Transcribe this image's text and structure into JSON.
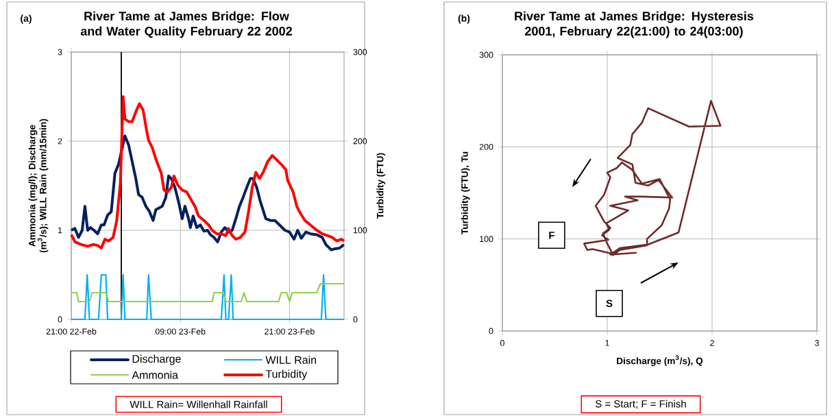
{
  "chart_data": [
    {
      "type": "line",
      "title": "River Tame at James Bridge: Flow and Water Quality February 22 2002",
      "ylabel": "Ammonia (mg/l); Discharge (m$^{3}$/s); WILL Rain (mm/15min)",
      "y2label": "Turbidity (FTU)",
      "xlim": [
        "2002-02-22T21:00",
        "2002-02-24T03:00"
      ],
      "xticks": [
        {
          "value": "2002-02-22T21:00",
          "label": "21:00 22-Feb"
        },
        {
          "value": "2002-02-23T09:00",
          "label": "09:00 23-Feb"
        },
        {
          "value": "2002-02-23T21:00",
          "label": "21:00 23-Feb"
        }
      ],
      "ylim": [
        0,
        3
      ],
      "yticks": [
        0,
        1,
        2,
        3
      ],
      "y2lim": [
        0,
        300
      ],
      "y2ticks": [
        0,
        100,
        200,
        300
      ],
      "grid": true,
      "legend": "bottom",
      "ref_lines": [
        {
          "axis": "x",
          "value": "2002-02-23T02:30",
          "color": "#000000"
        }
      ],
      "annotations": [
        "(a)",
        "WILL Rain= Willenhall Rainfall"
      ],
      "series": [
        {
          "name": "Discharge",
          "color": "#002060",
          "x": [
            "2002-02-22T21:00",
            "2002-02-22T21:24",
            "2002-02-22T21:48",
            "2002-02-22T22:12",
            "2002-02-22T22:30",
            "2002-02-22T22:48",
            "2002-02-22T23:06",
            "2002-02-22T23:30",
            "2002-02-22T23:54",
            "2002-02-23T00:18",
            "2002-02-23T00:36",
            "2002-02-23T01:00",
            "2002-02-23T01:24",
            "2002-02-23T01:48",
            "2002-02-23T02:12",
            "2002-02-23T02:30",
            "2002-02-23T02:54",
            "2002-02-23T03:18",
            "2002-02-23T03:42",
            "2002-02-23T04:06",
            "2002-02-23T04:24",
            "2002-02-23T04:48",
            "2002-02-23T05:12",
            "2002-02-23T05:36",
            "2002-02-23T06:00",
            "2002-02-23T06:18",
            "2002-02-23T07:00",
            "2002-02-23T07:24",
            "2002-02-23T07:42",
            "2002-02-23T08:00",
            "2002-02-23T08:24",
            "2002-02-23T08:48",
            "2002-02-23T09:12",
            "2002-02-23T09:30",
            "2002-02-23T09:54",
            "2002-02-23T10:06",
            "2002-02-23T10:24",
            "2002-02-23T10:48",
            "2002-02-23T11:12",
            "2002-02-23T11:36",
            "2002-02-23T12:00",
            "2002-02-23T12:18",
            "2002-02-23T12:42",
            "2002-02-23T13:06",
            "2002-02-23T13:30",
            "2002-02-23T13:54",
            "2002-02-23T14:18",
            "2002-02-23T14:42",
            "2002-02-23T15:06",
            "2002-02-23T15:30",
            "2002-02-23T15:54",
            "2002-02-23T16:18",
            "2002-02-23T16:42",
            "2002-02-23T17:00",
            "2002-02-23T17:24",
            "2002-02-23T17:48",
            "2002-02-23T18:24",
            "2002-02-23T18:54",
            "2002-02-23T19:24",
            "2002-02-23T19:54",
            "2002-02-23T20:30",
            "2002-02-23T21:00",
            "2002-02-23T21:30",
            "2002-02-23T21:54",
            "2002-02-23T22:18",
            "2002-02-23T22:48",
            "2002-02-23T23:18",
            "2002-02-24T00:00",
            "2002-02-24T00:36",
            "2002-02-24T01:00",
            "2002-02-24T01:36",
            "2002-02-24T01:54",
            "2002-02-24T02:30",
            "2002-02-24T03:00"
          ],
          "values": [
            1.0,
            1.02,
            0.92,
            1.0,
            1.27,
            1.0,
            1.03,
            1.0,
            0.96,
            1.06,
            1.06,
            1.17,
            1.21,
            1.64,
            1.74,
            1.88,
            2.06,
            1.96,
            1.77,
            1.58,
            1.4,
            1.37,
            1.27,
            1.21,
            1.11,
            1.23,
            1.27,
            1.37,
            1.61,
            1.58,
            1.48,
            1.32,
            1.13,
            1.27,
            1.13,
            1.03,
            1.16,
            1.03,
            1.06,
            0.99,
            1.0,
            0.95,
            0.92,
            0.87,
            0.98,
            1.03,
            0.98,
            1.0,
            1.13,
            1.27,
            1.37,
            1.48,
            1.58,
            1.58,
            1.48,
            1.32,
            1.13,
            1.11,
            1.11,
            1.06,
            1.0,
            0.98,
            0.9,
            1.0,
            0.91,
            0.98,
            0.96,
            0.95,
            0.92,
            0.84,
            0.78,
            0.79,
            0.8,
            0.84
          ]
        },
        {
          "name": "WILL Rain",
          "color": "#00b0f0",
          "x": [
            "2002-02-22T21:00",
            "2002-02-22T22:30",
            "2002-02-22T22:45",
            "2002-02-22T23:00",
            "2002-02-23T00:00",
            "2002-02-23T00:18",
            "2002-02-23T00:48",
            "2002-02-23T01:00",
            "2002-02-23T02:30",
            "2002-02-23T02:42",
            "2002-02-23T02:54",
            "2002-02-23T05:18",
            "2002-02-23T05:30",
            "2002-02-23T05:48",
            "2002-02-23T13:30",
            "2002-02-23T13:48",
            "2002-02-23T14:00",
            "2002-02-23T14:18",
            "2002-02-23T14:36",
            "2002-02-23T14:48",
            "2002-02-24T00:30",
            "2002-02-24T00:45",
            "2002-02-24T01:00",
            "2002-02-24T03:00"
          ],
          "values": [
            0,
            0,
            0.5,
            0,
            0,
            0.5,
            0.5,
            0,
            0,
            0.5,
            0,
            0,
            0.5,
            0,
            0,
            0.5,
            0,
            0,
            0.5,
            0,
            0,
            0.5,
            0,
            0
          ]
        },
        {
          "name": "Ammonia",
          "color": "#92d050",
          "x": [
            "2002-02-22T21:00",
            "2002-02-22T21:36",
            "2002-02-22T21:48",
            "2002-02-22T23:00",
            "2002-02-22T23:18",
            "2002-02-23T00:48",
            "2002-02-23T01:06",
            "2002-02-23T12:30",
            "2002-02-23T12:42",
            "2002-02-23T13:42",
            "2002-02-23T14:00",
            "2002-02-23T15:42",
            "2002-02-23T16:00",
            "2002-02-23T16:18",
            "2002-02-23T19:48",
            "2002-02-23T20:06",
            "2002-02-23T20:42",
            "2002-02-23T21:00",
            "2002-02-23T21:18",
            "2002-02-24T00:00",
            "2002-02-24T00:24",
            "2002-02-24T03:00"
          ],
          "values": [
            0.3,
            0.3,
            0.2,
            0.2,
            0.3,
            0.3,
            0.2,
            0.2,
            0.3,
            0.3,
            0.2,
            0.2,
            0.3,
            0.2,
            0.2,
            0.3,
            0.3,
            0.2,
            0.3,
            0.3,
            0.4,
            0.4
          ]
        },
        {
          "name": "Turbidity",
          "color": "#ff0000",
          "axis": "y2",
          "x": [
            "2002-02-22T21:00",
            "2002-02-22T21:24",
            "2002-02-22T22:06",
            "2002-02-22T22:48",
            "2002-02-22T23:24",
            "2002-02-22T23:54",
            "2002-02-23T00:18",
            "2002-02-23T00:42",
            "2002-02-23T01:06",
            "2002-02-23T01:36",
            "2002-02-23T02:00",
            "2002-02-23T02:24",
            "2002-02-23T02:42",
            "2002-02-23T02:54",
            "2002-02-23T03:18",
            "2002-02-23T03:42",
            "2002-02-23T04:06",
            "2002-02-23T04:30",
            "2002-02-23T04:54",
            "2002-02-23T05:18",
            "2002-02-23T05:30",
            "2002-02-23T05:54",
            "2002-02-23T06:18",
            "2002-02-23T06:54",
            "2002-02-23T07:12",
            "2002-02-23T07:36",
            "2002-02-23T08:00",
            "2002-02-23T08:18",
            "2002-02-23T08:42",
            "2002-02-23T09:12",
            "2002-02-23T09:42",
            "2002-02-23T10:18",
            "2002-02-23T10:36",
            "2002-02-23T11:00",
            "2002-02-23T11:36",
            "2002-02-23T12:06",
            "2002-02-23T12:30",
            "2002-02-23T13:00",
            "2002-02-23T13:30",
            "2002-02-23T14:00",
            "2002-02-23T14:18",
            "2002-02-23T14:42",
            "2002-02-23T15:06",
            "2002-02-23T15:36",
            "2002-02-23T16:06",
            "2002-02-23T16:30",
            "2002-02-23T16:54",
            "2002-02-23T17:18",
            "2002-02-23T17:42",
            "2002-02-23T18:06",
            "2002-02-23T18:36",
            "2002-02-23T19:06",
            "2002-02-23T19:30",
            "2002-02-23T20:06",
            "2002-02-23T20:36",
            "2002-02-23T20:48",
            "2002-02-23T21:24",
            "2002-02-23T21:48",
            "2002-02-23T22:12",
            "2002-02-23T22:42",
            "2002-02-23T23:18",
            "2002-02-24T00:00",
            "2002-02-24T00:36",
            "2002-02-24T01:12",
            "2002-02-24T01:42",
            "2002-02-24T02:12",
            "2002-02-24T02:42",
            "2002-02-24T03:00"
          ],
          "values": [
            95,
            87,
            84,
            82,
            84,
            83,
            80,
            90,
            88,
            92,
            111,
            153,
            250,
            225,
            222,
            222,
            233,
            242,
            235,
            211,
            201,
            193,
            180,
            164,
            145,
            143,
            148,
            161,
            151,
            145,
            143,
            132,
            127,
            116,
            111,
            106,
            100,
            96,
            96,
            94,
            102,
            94,
            90,
            92,
            98,
            121,
            148,
            165,
            158,
            165,
            177,
            184,
            180,
            174,
            168,
            156,
            143,
            127,
            119,
            111,
            106,
            100,
            96,
            94,
            92,
            88,
            90,
            88
          ]
        }
      ]
    },
    {
      "type": "line",
      "title": "River Tame at James Bridge: Hysteresis 2001, February 22(21:00) to 24(03:00)",
      "xlabel": "Discharge (m$^{3}$/s), Q",
      "ylabel": "Turbidity (FTU), Tu",
      "xlim": [
        0,
        3
      ],
      "xticks": [
        0,
        1,
        2,
        3
      ],
      "ylim": [
        0,
        300
      ],
      "yticks": [
        0,
        100,
        200,
        300
      ],
      "grid": true,
      "color": "#6e2a2a",
      "annotations": [
        "(b)",
        {
          "text": "F",
          "x": 0.47,
          "y": 104
        },
        {
          "text": "S",
          "x": 1.02,
          "y": 30
        },
        "S = Start; F = Finish"
      ],
      "x": [
        1.28,
        1.03,
        1.12,
        1.39,
        1.68,
        1.99,
        2.08,
        1.78,
        1.39,
        1.33,
        1.24,
        1.22,
        1.1,
        1.24,
        1.27,
        1.39,
        1.49,
        1.62,
        1.33,
        1.17,
        1.29,
        1.03,
        1.2,
        0.99,
        1.02,
        0.95,
        1.01,
        0.78,
        0.81,
        0.86,
        1.05,
        1.0,
        0.96,
        1.03,
        0.97,
        0.89,
        0.97,
        1.03,
        1.0,
        1.09,
        1.14,
        1.24,
        1.33,
        1.5,
        1.6,
        1.59,
        1.52,
        1.38,
        1.38,
        1.12,
        1.05
      ],
      "values": [
        85,
        83,
        90,
        94,
        107,
        250,
        223,
        222,
        242,
        226,
        214,
        202,
        188,
        181,
        161,
        158,
        164,
        145,
        146,
        146,
        142,
        136,
        131,
        117,
        110,
        104,
        99,
        95,
        88,
        89,
        84,
        95,
        106,
        112,
        119,
        136,
        148,
        167,
        172,
        177,
        183,
        175,
        160,
        165,
        143,
        133,
        115,
        100,
        93,
        88,
        82
      ]
    }
  ]
}
